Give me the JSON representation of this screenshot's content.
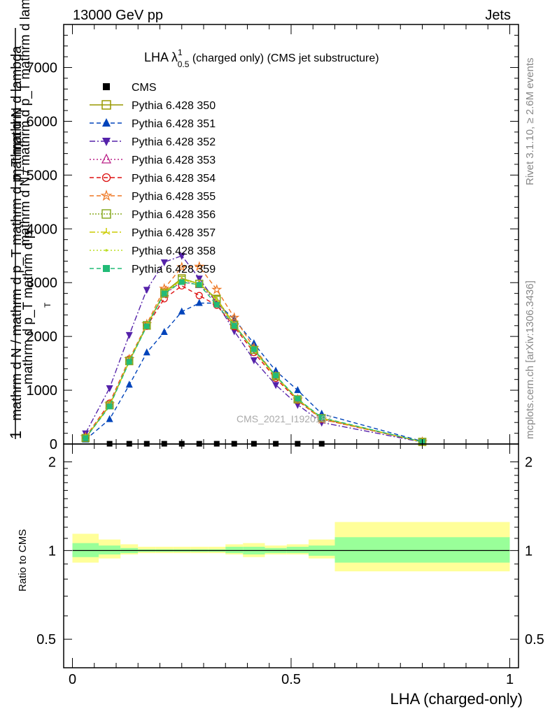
{
  "header": {
    "left": "13000 GeV pp",
    "right": "Jets"
  },
  "title": {
    "main": "LHA λ",
    "sup": "1",
    "sub": "0.5",
    "rest": " (charged only) (CMS jet substructure)"
  },
  "side_text": {
    "rivet": "Rivet 3.1.10, ≥ 2.6M events",
    "mcplots": "mcplots.cern.ch [arXiv:1306.3436]"
  },
  "watermark": "CMS_2021_I1920187",
  "ylabel": {
    "line1": "mathrm d N / mathrm d p_T mathrm d lambda",
    "line2": "mathrm d N",
    "over_prefix": "1",
    "over_rest": "mathrm d N / mathrm d p_T mathrm d p_T mathrm d lambda",
    "mid": "mathrm d p_T mathrm d p",
    "sub": "T"
  },
  "ratio_ylabel": "Ratio to CMS",
  "xlabel": "LHA (charged-only)",
  "chart_data": [
    {
      "type": "line",
      "xlim": [
        -0.02,
        1.02
      ],
      "ylim": [
        0,
        7800
      ],
      "yticks": [
        0,
        1000,
        2000,
        3000,
        4000,
        5000,
        6000,
        7000
      ],
      "ytick_labels": [
        "0",
        "1000",
        "2000",
        "3000",
        "4000",
        "5000",
        "6000",
        "7000"
      ],
      "x": [
        0.03,
        0.085,
        0.13,
        0.17,
        0.21,
        0.25,
        0.29,
        0.33,
        0.37,
        0.415,
        0.465,
        0.515,
        0.57,
        0.8
      ],
      "cms": {
        "name": "CMS",
        "x": [
          0.085,
          0.13,
          0.17,
          0.21,
          0.25,
          0.29,
          0.33,
          0.37,
          0.415,
          0.465,
          0.515,
          0.57
        ],
        "values": [
          5,
          5,
          5,
          5,
          5,
          5,
          5,
          5,
          5,
          5,
          5,
          5
        ]
      },
      "series": [
        {
          "name": "Pythia 6.428 350",
          "color": "#999900",
          "marker": "square-open",
          "dash": "",
          "values": [
            110,
            720,
            1540,
            2200,
            2820,
            3080,
            2980,
            2700,
            2220,
            1750,
            1260,
            830,
            480,
            40
          ]
        },
        {
          "name": "Pythia 6.428 351",
          "color": "#0044bb",
          "marker": "triangle-up",
          "dash": "6,4",
          "values": [
            80,
            460,
            1100,
            1700,
            2080,
            2460,
            2620,
            2620,
            2320,
            1870,
            1360,
            1000,
            560,
            50
          ]
        },
        {
          "name": "Pythia 6.428 352",
          "color": "#5522aa",
          "marker": "triangle-down",
          "dash": "8,3,2,3",
          "values": [
            200,
            1040,
            2030,
            2870,
            3380,
            3500,
            3080,
            2620,
            2100,
            1560,
            1100,
            730,
            400,
            35
          ]
        },
        {
          "name": "Pythia 6.428 353",
          "color": "#bb2288",
          "marker": "triangle-open",
          "dash": "2,3",
          "values": [
            120,
            720,
            1540,
            2200,
            2780,
            3020,
            2960,
            2650,
            2210,
            1740,
            1260,
            830,
            470,
            40
          ]
        },
        {
          "name": "Pythia 6.428 354",
          "color": "#dd1111",
          "marker": "circle-open",
          "dash": "6,4",
          "values": [
            130,
            760,
            1580,
            2190,
            2700,
            2940,
            2760,
            2580,
            2180,
            1700,
            1220,
            810,
            460,
            40
          ]
        },
        {
          "name": "Pythia 6.428 355",
          "color": "#ee7722",
          "marker": "star-open",
          "dash": "6,4",
          "values": [
            130,
            740,
            1580,
            2230,
            2890,
            3290,
            3300,
            2870,
            2350,
            1790,
            1260,
            830,
            460,
            40
          ]
        },
        {
          "name": "Pythia 6.428 356",
          "color": "#88aa22",
          "marker": "square-open",
          "dash": "2,2",
          "values": [
            110,
            720,
            1550,
            2210,
            2800,
            3050,
            2980,
            2680,
            2210,
            1750,
            1260,
            830,
            480,
            40
          ]
        },
        {
          "name": "Pythia 6.428 357",
          "color": "#cccc00",
          "marker": "tri-star",
          "dash": "8,3,2,3",
          "values": [
            110,
            710,
            1540,
            2200,
            2810,
            3060,
            2990,
            2680,
            2210,
            1740,
            1250,
            830,
            480,
            40
          ]
        },
        {
          "name": "Pythia 6.428 358",
          "color": "#bbdd22",
          "marker": "dot",
          "dash": "2,3",
          "values": [
            110,
            715,
            1545,
            2205,
            2805,
            3055,
            2985,
            2690,
            2215,
            1745,
            1255,
            830,
            480,
            40
          ]
        },
        {
          "name": "Pythia 6.428 359",
          "color": "#22bb77",
          "marker": "square",
          "dash": "6,4",
          "values": [
            110,
            700,
            1530,
            2190,
            2800,
            3010,
            2960,
            2590,
            2200,
            1760,
            1270,
            840,
            490,
            40
          ]
        }
      ]
    },
    {
      "type": "area",
      "xlim": [
        -0.02,
        1.02
      ],
      "ylim": [
        0.4,
        2.3
      ],
      "yscale": "log",
      "yticks": [
        0.5,
        1,
        2
      ],
      "ytick_labels": [
        "0.5",
        "1",
        "2"
      ],
      "xticks": [
        0,
        0.5,
        1
      ],
      "xtick_labels": [
        "0",
        "0.5",
        "1"
      ],
      "bins": [
        [
          0,
          0.06
        ],
        [
          0.06,
          0.11
        ],
        [
          0.11,
          0.15
        ],
        [
          0.15,
          0.19
        ],
        [
          0.19,
          0.23
        ],
        [
          0.23,
          0.27
        ],
        [
          0.27,
          0.31
        ],
        [
          0.31,
          0.35
        ],
        [
          0.35,
          0.39
        ],
        [
          0.39,
          0.44
        ],
        [
          0.44,
          0.49
        ],
        [
          0.49,
          0.54
        ],
        [
          0.54,
          0.6
        ],
        [
          0.6,
          1.0
        ]
      ],
      "inner_band": [
        [
          0.95,
          1.06
        ],
        [
          0.97,
          1.04
        ],
        [
          0.98,
          1.02
        ],
        [
          0.99,
          1.01
        ],
        [
          0.99,
          1.01
        ],
        [
          0.99,
          1.01
        ],
        [
          0.99,
          1.01
        ],
        [
          0.99,
          1.01
        ],
        [
          0.98,
          1.03
        ],
        [
          0.97,
          1.03
        ],
        [
          0.98,
          1.02
        ],
        [
          0.98,
          1.03
        ],
        [
          0.96,
          1.04
        ],
        [
          0.91,
          1.11
        ]
      ],
      "outer_band": [
        [
          0.91,
          1.14
        ],
        [
          0.94,
          1.09
        ],
        [
          0.97,
          1.05
        ],
        [
          0.98,
          1.03
        ],
        [
          0.98,
          1.03
        ],
        [
          0.98,
          1.03
        ],
        [
          0.98,
          1.03
        ],
        [
          0.98,
          1.03
        ],
        [
          0.97,
          1.05
        ],
        [
          0.95,
          1.06
        ],
        [
          0.97,
          1.04
        ],
        [
          0.97,
          1.05
        ],
        [
          0.94,
          1.09
        ],
        [
          0.85,
          1.25
        ]
      ],
      "colors": {
        "inner": "#99ff99",
        "outer": "#ffff99"
      },
      "reference": 1
    }
  ]
}
